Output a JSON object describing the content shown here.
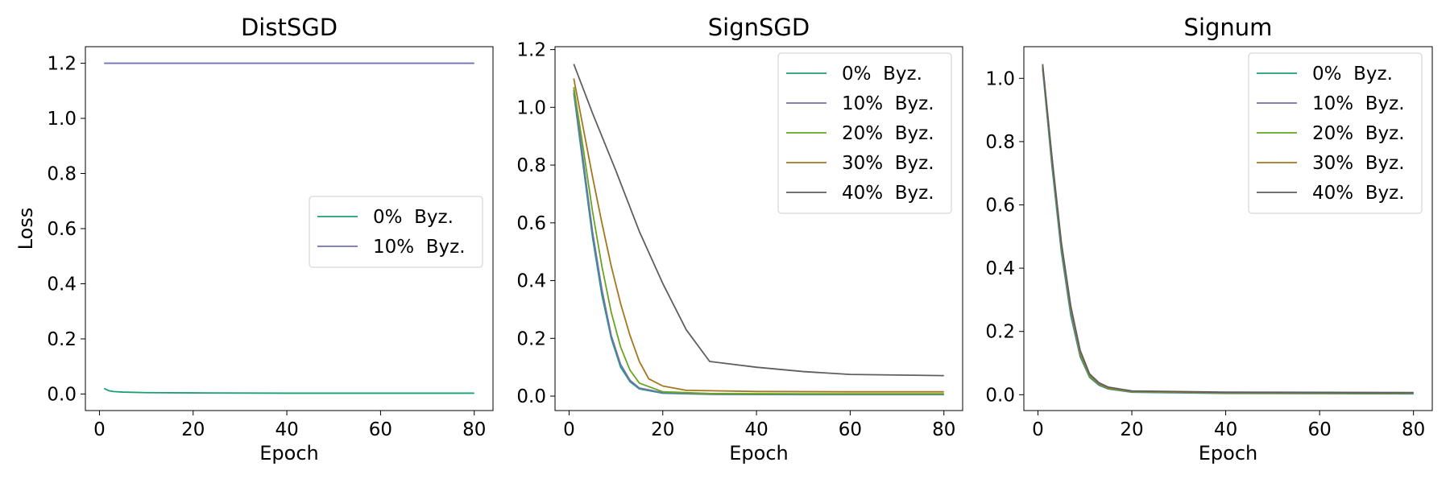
{
  "chart_data": [
    {
      "type": "line",
      "title": "DistSGD",
      "xlabel": "Epoch",
      "ylabel": "Loss",
      "xlim": [
        -3,
        84
      ],
      "ylim": [
        -0.06,
        1.26
      ],
      "xticks": [
        0,
        20,
        40,
        60,
        80
      ],
      "yticks": [
        0.0,
        0.2,
        0.4,
        0.6,
        0.8,
        1.0,
        1.2
      ],
      "legend_position": "center-right",
      "series": [
        {
          "name": "0%  Byz.",
          "color": "#1b9e77",
          "points": [
            [
              1,
              0.02
            ],
            [
              2,
              0.012
            ],
            [
              3,
              0.009
            ],
            [
              5,
              0.007
            ],
            [
              10,
              0.005
            ],
            [
              20,
              0.004
            ],
            [
              40,
              0.003
            ],
            [
              60,
              0.003
            ],
            [
              80,
              0.003
            ]
          ]
        },
        {
          "name": "10%  Byz.",
          "color": "#7570b3",
          "points": [
            [
              1,
              1.2
            ],
            [
              80,
              1.2
            ]
          ]
        }
      ]
    },
    {
      "type": "line",
      "title": "SignSGD",
      "xlabel": "Epoch",
      "ylabel": "",
      "xlim": [
        -3,
        84
      ],
      "ylim": [
        -0.05,
        1.21
      ],
      "xticks": [
        0,
        20,
        40,
        60,
        80
      ],
      "yticks": [
        0.0,
        0.2,
        0.4,
        0.6,
        0.8,
        1.0,
        1.2
      ],
      "legend_position": "top-right",
      "series": [
        {
          "name": "0%  Byz.",
          "color": "#1b9e77",
          "points": [
            [
              1,
              1.05
            ],
            [
              3,
              0.8
            ],
            [
              5,
              0.55
            ],
            [
              7,
              0.35
            ],
            [
              9,
              0.2
            ],
            [
              11,
              0.1
            ],
            [
              13,
              0.05
            ],
            [
              15,
              0.025
            ],
            [
              20,
              0.01
            ],
            [
              30,
              0.006
            ],
            [
              50,
              0.005
            ],
            [
              80,
              0.005
            ]
          ]
        },
        {
          "name": "10%  Byz.",
          "color": "#7570b3",
          "points": [
            [
              1,
              1.06
            ],
            [
              3,
              0.82
            ],
            [
              5,
              0.57
            ],
            [
              7,
              0.37
            ],
            [
              9,
              0.21
            ],
            [
              11,
              0.11
            ],
            [
              13,
              0.055
            ],
            [
              15,
              0.028
            ],
            [
              20,
              0.012
            ],
            [
              30,
              0.007
            ],
            [
              50,
              0.006
            ],
            [
              80,
              0.006
            ]
          ]
        },
        {
          "name": "20%  Byz.",
          "color": "#66a61e",
          "points": [
            [
              1,
              1.07
            ],
            [
              3,
              0.86
            ],
            [
              5,
              0.64
            ],
            [
              7,
              0.45
            ],
            [
              9,
              0.29
            ],
            [
              11,
              0.17
            ],
            [
              13,
              0.09
            ],
            [
              15,
              0.045
            ],
            [
              20,
              0.015
            ],
            [
              30,
              0.009
            ],
            [
              50,
              0.008
            ],
            [
              80,
              0.008
            ]
          ]
        },
        {
          "name": "30%  Byz.",
          "color": "#a6761d",
          "points": [
            [
              1,
              1.1
            ],
            [
              3,
              0.93
            ],
            [
              5,
              0.76
            ],
            [
              7,
              0.6
            ],
            [
              9,
              0.45
            ],
            [
              11,
              0.32
            ],
            [
              13,
              0.21
            ],
            [
              15,
              0.12
            ],
            [
              17,
              0.06
            ],
            [
              20,
              0.035
            ],
            [
              25,
              0.02
            ],
            [
              40,
              0.016
            ],
            [
              60,
              0.015
            ],
            [
              80,
              0.015
            ]
          ]
        },
        {
          "name": "40%  Byz.",
          "color": "#5f5f5f",
          "points": [
            [
              1,
              1.15
            ],
            [
              5,
              0.98
            ],
            [
              10,
              0.78
            ],
            [
              15,
              0.57
            ],
            [
              20,
              0.39
            ],
            [
              25,
              0.23
            ],
            [
              30,
              0.12
            ],
            [
              40,
              0.1
            ],
            [
              50,
              0.085
            ],
            [
              60,
              0.075
            ],
            [
              70,
              0.073
            ],
            [
              80,
              0.071
            ]
          ]
        }
      ]
    },
    {
      "type": "line",
      "title": "Signum",
      "xlabel": "Epoch",
      "ylabel": "",
      "xlim": [
        -3,
        84
      ],
      "ylim": [
        -0.05,
        1.1
      ],
      "xticks": [
        0,
        20,
        40,
        60,
        80
      ],
      "yticks": [
        0.0,
        0.2,
        0.4,
        0.6,
        0.8,
        1.0
      ],
      "legend_position": "top-right",
      "series": [
        {
          "name": "0%  Byz.",
          "color": "#1b9e77",
          "points": [
            [
              1,
              1.03
            ],
            [
              3,
              0.72
            ],
            [
              5,
              0.45
            ],
            [
              7,
              0.25
            ],
            [
              9,
              0.12
            ],
            [
              11,
              0.055
            ],
            [
              13,
              0.03
            ],
            [
              15,
              0.018
            ],
            [
              20,
              0.008
            ],
            [
              40,
              0.004
            ],
            [
              80,
              0.003
            ]
          ]
        },
        {
          "name": "10%  Byz.",
          "color": "#7570b3",
          "points": [
            [
              1,
              1.035
            ],
            [
              3,
              0.73
            ],
            [
              5,
              0.46
            ],
            [
              7,
              0.26
            ],
            [
              9,
              0.125
            ],
            [
              11,
              0.058
            ],
            [
              13,
              0.032
            ],
            [
              15,
              0.019
            ],
            [
              20,
              0.009
            ],
            [
              40,
              0.005
            ],
            [
              80,
              0.004
            ]
          ]
        },
        {
          "name": "20%  Byz.",
          "color": "#66a61e",
          "points": [
            [
              1,
              1.04
            ],
            [
              3,
              0.74
            ],
            [
              5,
              0.47
            ],
            [
              7,
              0.27
            ],
            [
              9,
              0.13
            ],
            [
              11,
              0.06
            ],
            [
              13,
              0.034
            ],
            [
              15,
              0.02
            ],
            [
              20,
              0.01
            ],
            [
              40,
              0.006
            ],
            [
              80,
              0.005
            ]
          ]
        },
        {
          "name": "30%  Byz.",
          "color": "#a6761d",
          "points": [
            [
              1,
              1.04
            ],
            [
              3,
              0.745
            ],
            [
              5,
              0.475
            ],
            [
              7,
              0.275
            ],
            [
              9,
              0.135
            ],
            [
              11,
              0.063
            ],
            [
              13,
              0.036
            ],
            [
              15,
              0.022
            ],
            [
              20,
              0.011
            ],
            [
              40,
              0.007
            ],
            [
              80,
              0.006
            ]
          ]
        },
        {
          "name": "40%  Byz.",
          "color": "#5f5f5f",
          "points": [
            [
              1,
              1.045
            ],
            [
              3,
              0.75
            ],
            [
              5,
              0.48
            ],
            [
              7,
              0.28
            ],
            [
              9,
              0.14
            ],
            [
              11,
              0.066
            ],
            [
              13,
              0.038
            ],
            [
              15,
              0.024
            ],
            [
              20,
              0.012
            ],
            [
              40,
              0.008
            ],
            [
              80,
              0.007
            ]
          ]
        }
      ]
    }
  ]
}
